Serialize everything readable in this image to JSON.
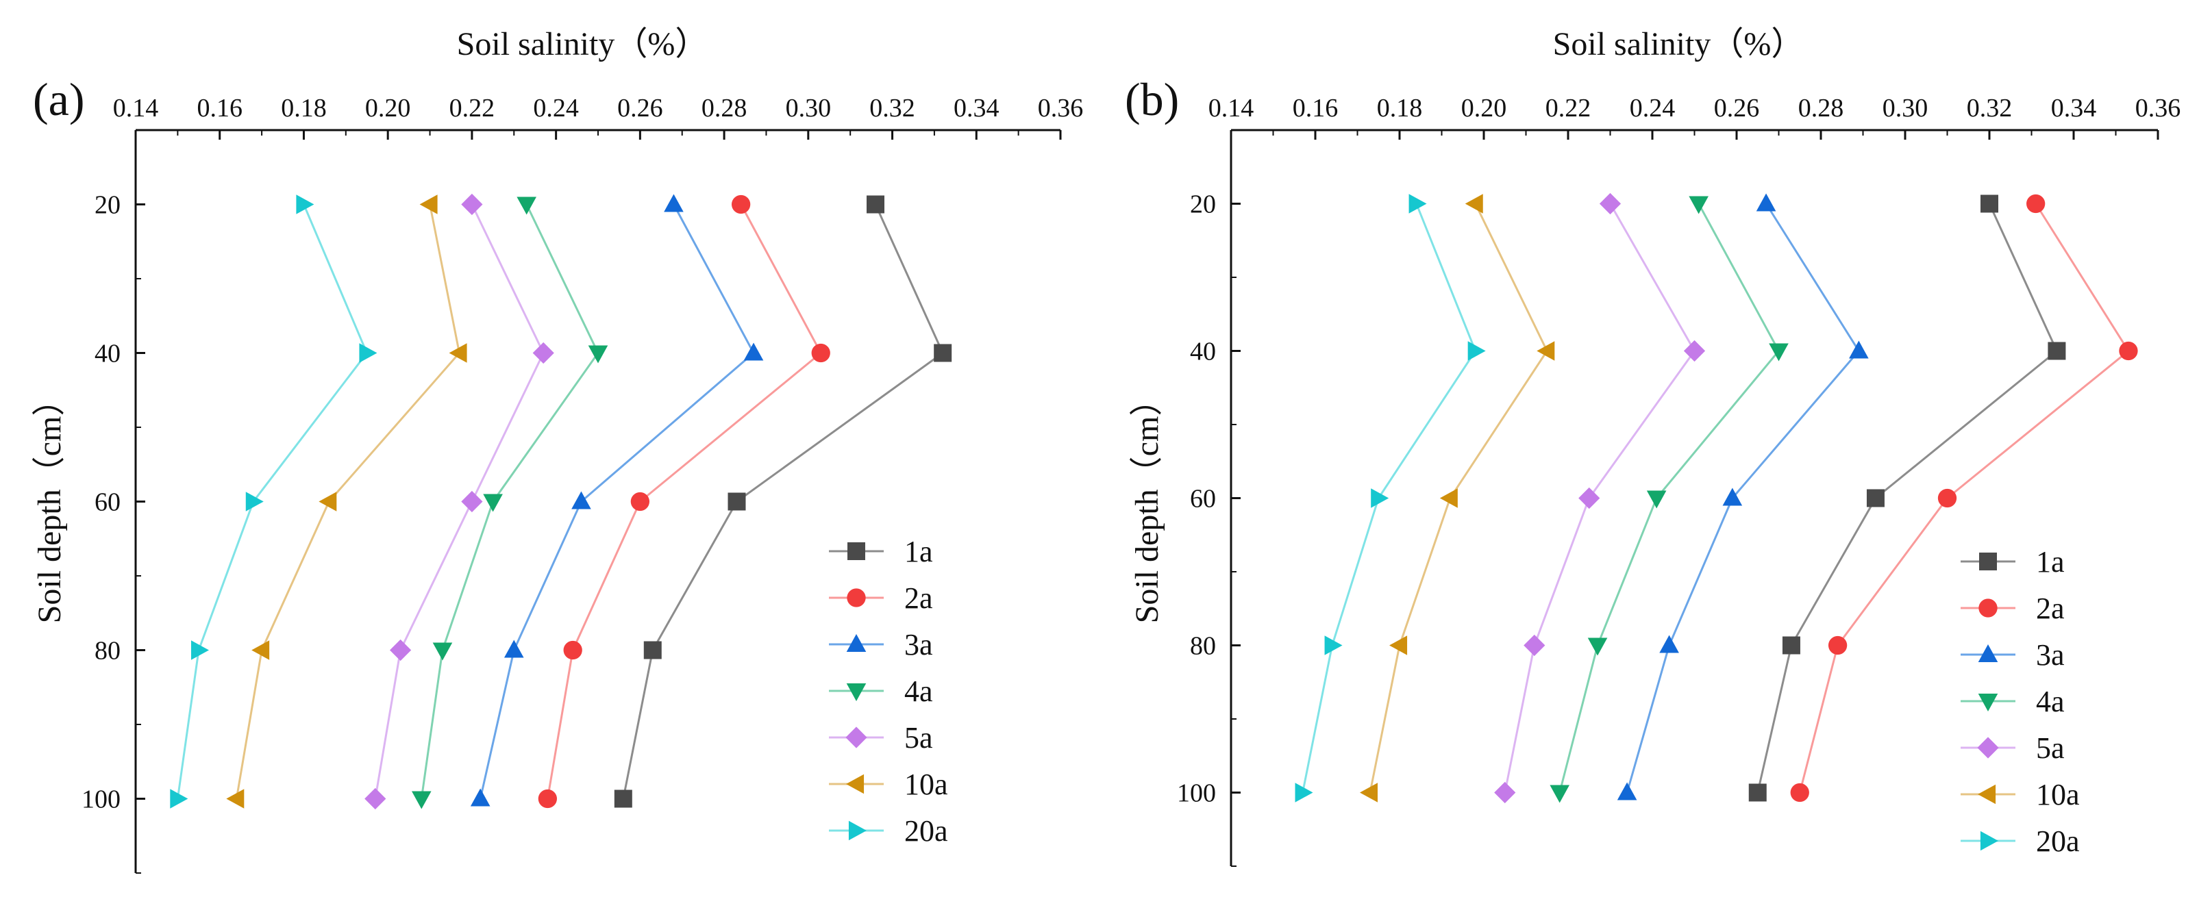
{
  "series_colors": {
    "1a": "#4a4a4a",
    "2a": "#f13c3c",
    "3a": "#1268d6",
    "4a": "#13a76a",
    "5a": "#c47ae8",
    "10a": "#cf8f0c",
    "20a": "#16c7cf"
  },
  "line_colors": {
    "1a": "#8c8c8c",
    "2a": "#f99a9a",
    "3a": "#6aa5e8",
    "4a": "#7fd3b1",
    "5a": "#dcb4f2",
    "10a": "#e6c484",
    "20a": "#7fe3e6"
  },
  "markers": {
    "1a": "square",
    "2a": "circle",
    "3a": "triangle-up",
    "4a": "triangle-down",
    "5a": "diamond",
    "10a": "triangle-left",
    "20a": "triangle-right"
  },
  "chart_data": [
    {
      "type": "line",
      "panel_label": "(a)",
      "xlabel": "Soil salinity（%）",
      "ylabel": "Soil depth（cm）",
      "xlim": [
        0.14,
        0.36
      ],
      "ylim": [
        110,
        10
      ],
      "x_ticks": [
        "0.14",
        "0.16",
        "0.18",
        "0.20",
        "0.22",
        "0.24",
        "0.26",
        "0.28",
        "0.30",
        "0.32",
        "0.34",
        "0.36"
      ],
      "y_ticks": [
        "20",
        "40",
        "60",
        "80",
        "100"
      ],
      "x_axis_position": "top",
      "y_reversed": true,
      "legend_position": "bottom-right",
      "depths": [
        20,
        40,
        60,
        80,
        100
      ],
      "series": [
        {
          "name": "1a",
          "values": [
            0.316,
            0.332,
            0.283,
            0.263,
            0.256
          ]
        },
        {
          "name": "2a",
          "values": [
            0.284,
            0.303,
            0.26,
            0.244,
            0.238
          ]
        },
        {
          "name": "3a",
          "values": [
            0.268,
            0.287,
            0.246,
            0.23,
            0.222
          ]
        },
        {
          "name": "4a",
          "values": [
            0.233,
            0.25,
            0.225,
            0.213,
            0.208
          ]
        },
        {
          "name": "5a",
          "values": [
            0.22,
            0.237,
            0.22,
            0.203,
            0.197
          ]
        },
        {
          "name": "10a",
          "values": [
            0.21,
            0.217,
            0.186,
            0.17,
            0.164
          ]
        },
        {
          "name": "20a",
          "values": [
            0.18,
            0.195,
            0.168,
            0.155,
            0.15
          ]
        }
      ]
    },
    {
      "type": "line",
      "panel_label": "(b)",
      "xlabel": "Soil salinity（%）",
      "ylabel": "Soil depth（cm）",
      "xlim": [
        0.14,
        0.36
      ],
      "ylim": [
        110,
        10
      ],
      "x_ticks": [
        "0.14",
        "0.16",
        "0.18",
        "0.20",
        "0.22",
        "0.24",
        "0.26",
        "0.28",
        "0.30",
        "0.32",
        "0.34",
        "0.36"
      ],
      "y_ticks": [
        "20",
        "40",
        "60",
        "80",
        "100"
      ],
      "x_axis_position": "top",
      "y_reversed": true,
      "legend_position": "bottom-right",
      "depths": [
        20,
        40,
        60,
        80,
        100
      ],
      "series": [
        {
          "name": "1a",
          "values": [
            0.32,
            0.336,
            0.293,
            0.273,
            0.265
          ]
        },
        {
          "name": "2a",
          "values": [
            0.331,
            0.353,
            0.31,
            0.284,
            0.275
          ]
        },
        {
          "name": "3a",
          "values": [
            0.267,
            0.289,
            0.259,
            0.244,
            0.234
          ]
        },
        {
          "name": "4a",
          "values": [
            0.251,
            0.27,
            0.241,
            0.227,
            0.218
          ]
        },
        {
          "name": "5a",
          "values": [
            0.23,
            0.25,
            0.225,
            0.212,
            0.205
          ]
        },
        {
          "name": "10a",
          "values": [
            0.198,
            0.215,
            0.192,
            0.18,
            0.173
          ]
        },
        {
          "name": "20a",
          "values": [
            0.184,
            0.198,
            0.175,
            0.164,
            0.157
          ]
        }
      ]
    }
  ]
}
